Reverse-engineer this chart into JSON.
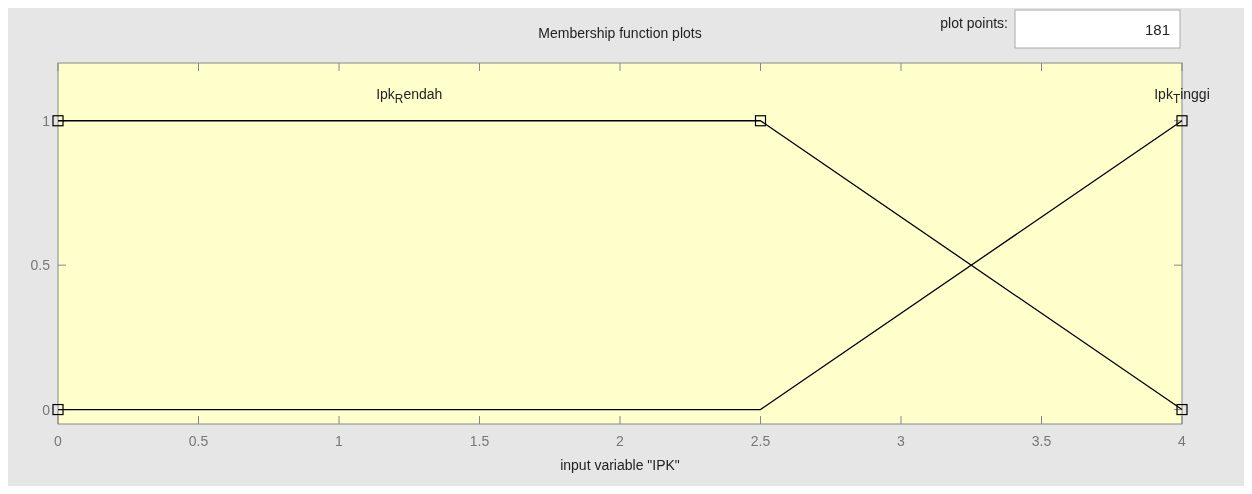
{
  "chart_data": {
    "type": "line",
    "title": "Membership function plots",
    "xlabel": "input variable \"IPK\"",
    "x": [
      0,
      2.5,
      4
    ],
    "series": [
      {
        "name": "Ipk$_{R}$endah",
        "color": "#000000",
        "values": [
          1,
          1,
          0
        ]
      },
      {
        "name": "Ipk$_{T}$inggi",
        "color": "#000000",
        "values": [
          0,
          0,
          1
        ]
      }
    ],
    "xlim": [
      0,
      4
    ],
    "xticks": [
      0,
      0.5,
      1,
      1.5,
      2,
      2.5,
      3,
      3.5,
      4
    ],
    "ylim": [
      -0.05,
      1.2
    ],
    "yticks": [
      0,
      0.5,
      1
    ],
    "grid": false,
    "marker": "square",
    "line_style": "solid",
    "annotations": [
      "plot points:",
      "181"
    ]
  }
}
